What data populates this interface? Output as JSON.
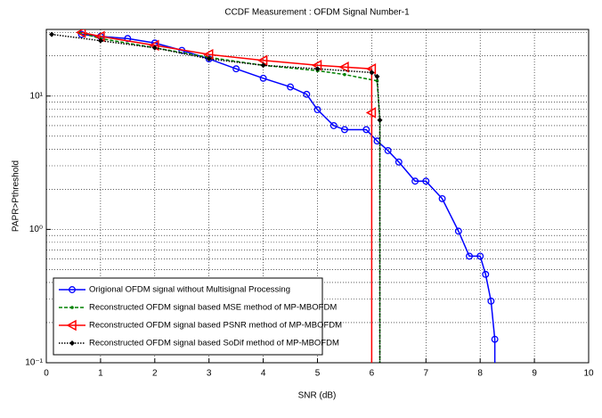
{
  "chart_data": {
    "type": "line",
    "title": "CCDF Measurement : OFDM Signal Number-1",
    "x_label": "SNR (dB)",
    "y_label": "PAPR>Pthreshold",
    "xlim": [
      0,
      10
    ],
    "xticks": [
      0,
      1,
      2,
      3,
      4,
      5,
      6,
      7,
      8,
      9,
      10
    ],
    "ylim": [
      0.1,
      31.6
    ],
    "yticks": [
      {
        "value": 0.1,
        "label": "10⁻¹"
      },
      {
        "value": 1,
        "label": "10⁰"
      },
      {
        "value": 10,
        "label": "10¹"
      }
    ],
    "y_log": true,
    "grid": true,
    "minor_grid": true,
    "legend": "lower left",
    "series": [
      {
        "name": "Origional OFDM signal without Multisignal Processing",
        "color": "#0000ff",
        "marker": "circle",
        "linestyle": "solid",
        "x": [
          0.65,
          1,
          1.5,
          2,
          2.5,
          3,
          3.5,
          4,
          4.5,
          4.8,
          5,
          5.3,
          5.5,
          5.9,
          6.1,
          6.3,
          6.5,
          6.8,
          7,
          7.3,
          7.6,
          7.8,
          8,
          8.1,
          8.2,
          8.27,
          8.27
        ],
        "values": [
          29,
          28,
          27,
          25,
          22,
          19,
          16,
          13.6,
          11.7,
          10.3,
          7.9,
          6.0,
          5.6,
          5.6,
          4.6,
          3.9,
          3.2,
          2.3,
          2.3,
          1.7,
          0.97,
          0.63,
          0.63,
          0.46,
          0.29,
          0.15,
          0.1
        ]
      },
      {
        "name": "Reconstructed OFDM signal based MSE method of MP-MBOFDM",
        "color": "#008000",
        "marker": "dot",
        "linestyle": "dashed",
        "x": [
          0.6,
          1,
          2,
          3,
          4,
          5,
          5.5,
          6.1,
          6.15,
          6.15
        ],
        "values": [
          30,
          27,
          23,
          19.5,
          17,
          15.5,
          14.5,
          13,
          6.6,
          0.1
        ]
      },
      {
        "name": "Reconstructed OFDM signal based PSNR method of MP-MBOFDM",
        "color": "#ff0000",
        "marker": "triangle-left",
        "linestyle": "solid",
        "x": [
          0.65,
          1,
          2,
          3,
          4,
          5,
          5.5,
          6,
          6,
          6
        ],
        "values": [
          30,
          28,
          24,
          20.5,
          18.5,
          17,
          16.5,
          16,
          7.5,
          0.1
        ]
      },
      {
        "name": "Reconstructed OFDM signal based SoDif method of MP-MBOFDM",
        "color": "#000000",
        "marker": "diamond",
        "linestyle": "dotted",
        "x": [
          0.1,
          1,
          2,
          3,
          4,
          5,
          6,
          6.1,
          6.15,
          6.15
        ],
        "values": [
          29,
          26,
          23,
          19,
          17,
          16,
          15,
          14,
          6.6,
          0.1
        ]
      }
    ]
  }
}
